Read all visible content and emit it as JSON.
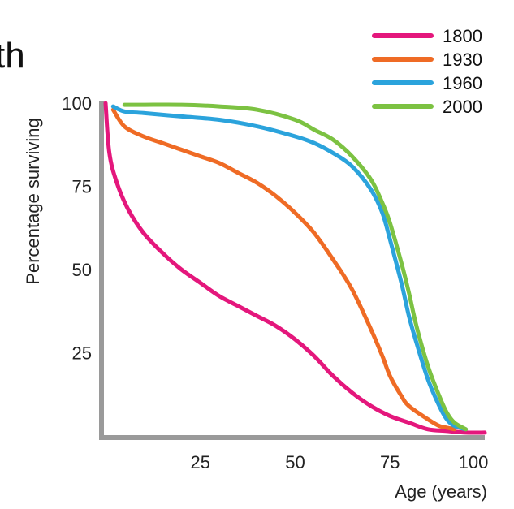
{
  "title_fragment": "th",
  "chart_data": {
    "type": "line",
    "xlabel": "Age (years)",
    "ylabel": "Percentage surviving",
    "xlim": [
      0,
      100
    ],
    "ylim": [
      0,
      100
    ],
    "x_ticks": [
      25,
      50,
      75,
      100
    ],
    "y_ticks": [
      25,
      50,
      75,
      100
    ],
    "x_tick_labels": [
      "25",
      "50",
      "75",
      "100"
    ],
    "y_tick_labels": [
      "25",
      "50",
      "75",
      "100"
    ],
    "grid": false,
    "legend_position": "top-right",
    "series": [
      {
        "name": "1800",
        "color": "#e4177c",
        "x": [
          0,
          1,
          3,
          6,
          10,
          15,
          20,
          25,
          30,
          35,
          40,
          45,
          50,
          55,
          60,
          65,
          70,
          75,
          80,
          85,
          90,
          95,
          100
        ],
        "y": [
          100,
          85,
          76,
          68,
          61,
          55,
          50,
          46,
          42,
          39,
          36,
          33,
          29,
          24,
          18,
          13,
          9,
          6,
          4,
          2,
          1.5,
          1,
          1
        ]
      },
      {
        "name": "1930",
        "color": "#ef6b25",
        "x": [
          2,
          5,
          10,
          15,
          20,
          25,
          30,
          35,
          40,
          45,
          50,
          55,
          60,
          65,
          70,
          73,
          75,
          78,
          80,
          85,
          88,
          90,
          92
        ],
        "y": [
          98,
          93,
          90,
          88,
          86,
          84,
          82,
          79,
          76,
          72,
          67,
          61,
          53,
          44,
          32,
          24,
          18,
          12,
          9,
          5,
          3,
          2.5,
          2
        ]
      },
      {
        "name": "1960",
        "color": "#2ba3dc",
        "x": [
          2,
          5,
          10,
          20,
          30,
          40,
          50,
          55,
          60,
          65,
          70,
          73,
          75,
          78,
          80,
          82,
          85,
          88,
          90,
          92,
          95
        ],
        "y": [
          99,
          97.5,
          97,
          96,
          95,
          93,
          90,
          88,
          85,
          81,
          74,
          67,
          59,
          46,
          36,
          28,
          17,
          9,
          5,
          3,
          2
        ]
      },
      {
        "name": "2000",
        "color": "#7cc242",
        "x": [
          5,
          10,
          20,
          30,
          40,
          50,
          55,
          60,
          65,
          70,
          73,
          75,
          78,
          80,
          82,
          85,
          88,
          90,
          92,
          95
        ],
        "y": [
          99.5,
          99.5,
          99.5,
          99,
          98,
          95,
          92,
          89,
          84,
          77,
          70,
          64,
          52,
          43,
          33,
          21,
          12,
          7,
          4,
          2
        ]
      }
    ]
  }
}
